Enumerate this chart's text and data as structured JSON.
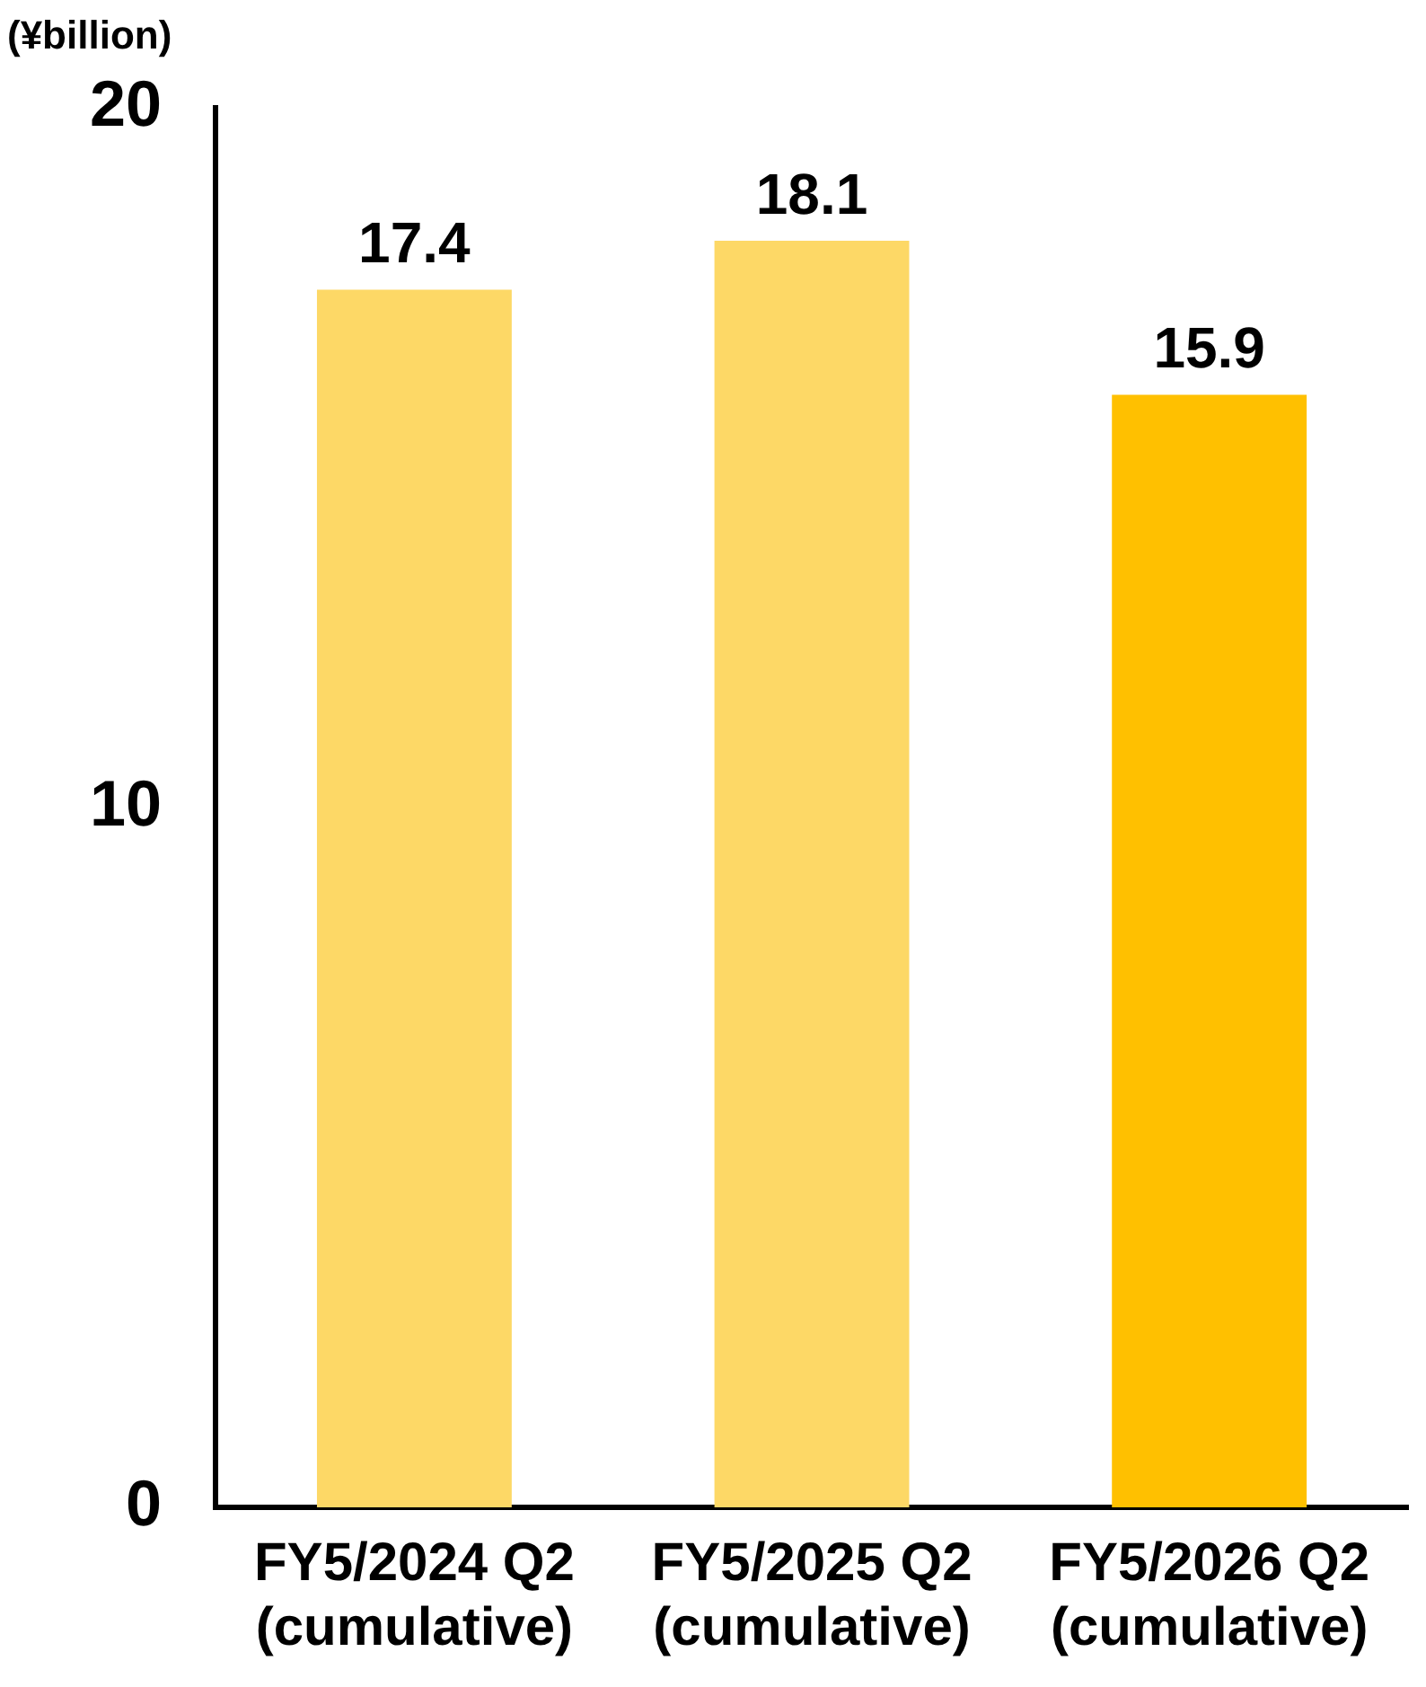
{
  "chart_data": {
    "type": "bar",
    "ylabel": "(¥billion)",
    "categories": [
      "FY5/2024 Q2\n(cumulative)",
      "FY5/2025 Q2\n(cumulative)",
      "FY5/2026 Q2\n(cumulative)"
    ],
    "values": [
      17.4,
      18.1,
      15.9
    ],
    "colors": [
      "#fdd866",
      "#fdd866",
      "#ffc000"
    ],
    "ylim": [
      0,
      20
    ],
    "yticks": [
      0,
      10,
      20
    ],
    "data_labels": true,
    "grid": false,
    "legend": false
  }
}
